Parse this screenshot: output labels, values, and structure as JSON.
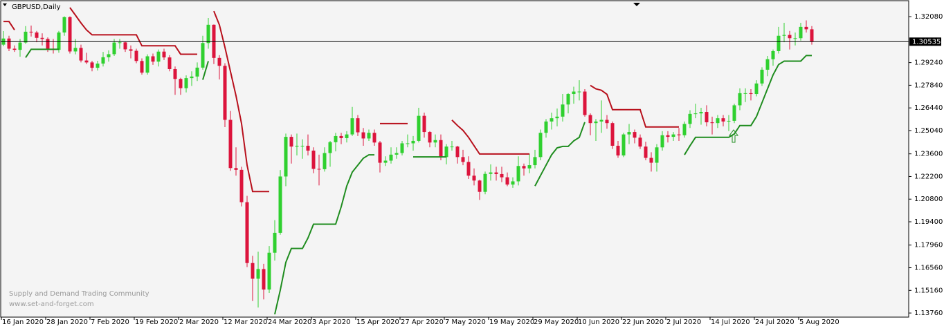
{
  "chart_data": {
    "type": "candlestick",
    "title": "GBPUSD,Daily",
    "categories": [
      "16 Jan 2020",
      null,
      null,
      null,
      null,
      null,
      null,
      null,
      "28 Jan 2020",
      null,
      null,
      null,
      null,
      null,
      null,
      null,
      "7 Feb 2020",
      null,
      null,
      null,
      null,
      null,
      null,
      null,
      "19 Feb 2020",
      null,
      null,
      null,
      null,
      null,
      null,
      null,
      "2 Mar 2020",
      null,
      null,
      null,
      null,
      null,
      null,
      null,
      "12 Mar 2020",
      null,
      null,
      null,
      null,
      null,
      null,
      null,
      "24 Mar 2020",
      null,
      null,
      null,
      null,
      null,
      null,
      null,
      "3 Apr 2020",
      null,
      null,
      null,
      null,
      null,
      null,
      null,
      "15 Apr 2020",
      null,
      null,
      null,
      null,
      null,
      null,
      null,
      "27 Apr 2020",
      null,
      null,
      null,
      null,
      null,
      null,
      null,
      "7 May 2020",
      null,
      null,
      null,
      null,
      null,
      null,
      null,
      "19 May 2020",
      null,
      null,
      null,
      null,
      null,
      null,
      null,
      "29 May 2020",
      null,
      null,
      null,
      null,
      null,
      null,
      null,
      "10 Jun 2020",
      null,
      null,
      null,
      null,
      null,
      null,
      null,
      "22 Jun 2020",
      null,
      null,
      null,
      null,
      null,
      null,
      null,
      "2 Jul 2020",
      null,
      null,
      null,
      null,
      null,
      null,
      null,
      "14 Jul 2020",
      null,
      null,
      null,
      null,
      null,
      null,
      null,
      "24 Jul 2020",
      null,
      null,
      null,
      null,
      null,
      null,
      null,
      "5 Aug 2020",
      null,
      null
    ],
    "values": [
      [
        1.3035,
        1.3119,
        1.3025,
        1.3073
      ],
      [
        1.3073,
        1.309,
        1.2995,
        1.301
      ],
      [
        1.301,
        1.303,
        1.299,
        1.3003
      ],
      [
        1.3003,
        1.307,
        1.296,
        1.3048
      ],
      [
        1.3048,
        1.315,
        1.304,
        1.3115
      ],
      [
        1.3115,
        1.3153,
        1.3085,
        1.311
      ],
      [
        1.311,
        1.312,
        1.305,
        1.3077
      ],
      [
        1.3077,
        1.3105,
        1.303,
        1.307
      ],
      [
        1.307,
        1.308,
        1.299,
        1.301
      ],
      [
        1.301,
        1.307,
        1.298,
        1.3003
      ],
      [
        1.3003,
        1.312,
        1.2985,
        1.311
      ],
      [
        1.311,
        1.321,
        1.309,
        1.3205
      ],
      [
        1.3205,
        1.321,
        1.298,
        1.2993
      ],
      [
        1.2993,
        1.307,
        1.2975,
        1.3015
      ],
      [
        1.3015,
        1.3035,
        1.2925,
        1.2937
      ],
      [
        1.2937,
        1.2985,
        1.2915,
        1.2925
      ],
      [
        1.2925,
        1.2935,
        1.287,
        1.2892
      ],
      [
        1.2892,
        1.2935,
        1.2875,
        1.2918
      ],
      [
        1.2918,
        1.299,
        1.29,
        1.2957
      ],
      [
        1.2957,
        1.3,
        1.293,
        1.2976
      ],
      [
        1.2976,
        1.307,
        1.2965,
        1.3048
      ],
      [
        1.3048,
        1.307,
        1.301,
        1.3049
      ],
      [
        1.3049,
        1.3055,
        1.299,
        1.3006
      ],
      [
        1.3006,
        1.303,
        1.295,
        1.2997
      ],
      [
        1.2997,
        1.301,
        1.292,
        1.2934
      ],
      [
        1.2934,
        1.295,
        1.285,
        1.2862
      ],
      [
        1.2862,
        1.2975,
        1.285,
        1.2963
      ],
      [
        1.2963,
        1.298,
        1.291,
        1.293
      ],
      [
        1.293,
        1.3005,
        1.29,
        1.2992
      ],
      [
        1.2992,
        1.301,
        1.294,
        1.2956
      ],
      [
        1.2956,
        1.297,
        1.287,
        1.2884
      ],
      [
        1.2884,
        1.29,
        1.2725,
        1.2823
      ],
      [
        1.2823,
        1.283,
        1.2725,
        1.2766
      ],
      [
        1.2766,
        1.2845,
        1.274,
        1.2828
      ],
      [
        1.2828,
        1.287,
        1.278,
        1.2838
      ],
      [
        1.2838,
        1.2925,
        1.281,
        1.2893
      ],
      [
        1.2893,
        1.309,
        1.288,
        1.3045
      ],
      [
        1.3045,
        1.32,
        1.301,
        1.3158
      ],
      [
        1.3158,
        1.316,
        1.2915,
        1.2953
      ],
      [
        1.2953,
        1.297,
        1.282,
        1.2904
      ],
      [
        1.2904,
        1.292,
        1.2525,
        1.257
      ],
      [
        1.257,
        1.2625,
        1.2255,
        1.2272
      ],
      [
        1.2272,
        1.24,
        1.2225,
        1.2261
      ],
      [
        1.2261,
        1.228,
        1.2035,
        1.2061
      ],
      [
        1.2061,
        1.21,
        1.166,
        1.1685
      ],
      [
        1.1685,
        1.173,
        1.145,
        1.1588
      ],
      [
        1.1588,
        1.1755,
        1.141,
        1.1648
      ],
      [
        1.1648,
        1.168,
        1.146,
        1.1521
      ],
      [
        1.1521,
        1.179,
        1.15,
        1.1749
      ],
      [
        1.1749,
        1.195,
        1.17,
        1.1872
      ],
      [
        1.1872,
        1.226,
        1.186,
        1.222
      ],
      [
        1.222,
        1.2485,
        1.216,
        1.2465
      ],
      [
        1.2465,
        1.248,
        1.23,
        1.2405
      ],
      [
        1.2405,
        1.2485,
        1.235,
        1.241
      ],
      [
        1.241,
        1.245,
        1.233,
        1.241
      ],
      [
        1.241,
        1.248,
        1.235,
        1.238
      ],
      [
        1.238,
        1.24,
        1.224,
        1.2267
      ],
      [
        1.2267,
        1.2355,
        1.2165,
        1.2265
      ],
      [
        1.2265,
        1.24,
        1.225,
        1.2365
      ],
      [
        1.2365,
        1.244,
        1.228,
        1.2432
      ],
      [
        1.2432,
        1.249,
        1.2375,
        1.247
      ],
      [
        1.247,
        1.249,
        1.242,
        1.2457
      ],
      [
        1.2457,
        1.25,
        1.243,
        1.248
      ],
      [
        1.248,
        1.265,
        1.247,
        1.258
      ],
      [
        1.258,
        1.26,
        1.247,
        1.2493
      ],
      [
        1.2493,
        1.252,
        1.241,
        1.2455
      ],
      [
        1.2455,
        1.251,
        1.244,
        1.249
      ],
      [
        1.249,
        1.251,
        1.241,
        1.243
      ],
      [
        1.243,
        1.244,
        1.2245,
        1.2305
      ],
      [
        1.2305,
        1.2345,
        1.2285,
        1.2318
      ],
      [
        1.2318,
        1.24,
        1.23,
        1.2355
      ],
      [
        1.2355,
        1.24,
        1.233,
        1.2365
      ],
      [
        1.2365,
        1.244,
        1.235,
        1.2425
      ],
      [
        1.2425,
        1.248,
        1.24,
        1.2425
      ],
      [
        1.2425,
        1.247,
        1.238,
        1.244
      ],
      [
        1.244,
        1.2645,
        1.243,
        1.2595
      ],
      [
        1.2595,
        1.2615,
        1.246,
        1.2495
      ],
      [
        1.2495,
        1.25,
        1.24,
        1.243
      ],
      [
        1.243,
        1.248,
        1.24,
        1.2445
      ],
      [
        1.2445,
        1.248,
        1.232,
        1.234
      ],
      [
        1.234,
        1.242,
        1.2295,
        1.2405
      ],
      [
        1.2405,
        1.244,
        1.238,
        1.2405
      ],
      [
        1.2405,
        1.241,
        1.23,
        1.234
      ],
      [
        1.234,
        1.2385,
        1.229,
        1.231
      ],
      [
        1.231,
        1.2345,
        1.2205,
        1.2225
      ],
      [
        1.2225,
        1.227,
        1.2165,
        1.2195
      ],
      [
        1.2195,
        1.22,
        1.2075,
        1.2125
      ],
      [
        1.2125,
        1.225,
        1.211,
        1.2236
      ],
      [
        1.2236,
        1.2295,
        1.2195,
        1.2245
      ],
      [
        1.2245,
        1.228,
        1.2195,
        1.2235
      ],
      [
        1.2235,
        1.228,
        1.2185,
        1.2215
      ],
      [
        1.2215,
        1.2245,
        1.216,
        1.217
      ],
      [
        1.217,
        1.2215,
        1.215,
        1.219
      ],
      [
        1.219,
        1.2345,
        1.2165,
        1.2285
      ],
      [
        1.2285,
        1.23,
        1.2225,
        1.227
      ],
      [
        1.227,
        1.236,
        1.224,
        1.229
      ],
      [
        1.229,
        1.2385,
        1.227,
        1.234
      ],
      [
        1.234,
        1.251,
        1.232,
        1.249
      ],
      [
        1.249,
        1.2575,
        1.246,
        1.256
      ],
      [
        1.256,
        1.2615,
        1.251,
        1.258
      ],
      [
        1.258,
        1.264,
        1.253,
        1.259
      ],
      [
        1.259,
        1.273,
        1.256,
        1.2665
      ],
      [
        1.2665,
        1.2735,
        1.261,
        1.273
      ],
      [
        1.273,
        1.2775,
        1.267,
        1.2745
      ],
      [
        1.2745,
        1.2815,
        1.269,
        1.2745
      ],
      [
        1.2745,
        1.276,
        1.259,
        1.26
      ],
      [
        1.26,
        1.261,
        1.2475,
        1.255
      ],
      [
        1.255,
        1.2575,
        1.244,
        1.256
      ],
      [
        1.256,
        1.269,
        1.249,
        1.257
      ],
      [
        1.257,
        1.26,
        1.2515,
        1.255
      ],
      [
        1.255,
        1.256,
        1.239,
        1.241
      ],
      [
        1.241,
        1.244,
        1.2335,
        1.235
      ],
      [
        1.235,
        1.249,
        1.234,
        1.248
      ],
      [
        1.248,
        1.2545,
        1.242,
        1.2495
      ],
      [
        1.2495,
        1.251,
        1.2425,
        1.246
      ],
      [
        1.246,
        1.248,
        1.239,
        1.2405
      ],
      [
        1.2405,
        1.2435,
        1.232,
        1.2335
      ],
      [
        1.2335,
        1.237,
        1.225,
        1.2305
      ],
      [
        1.2305,
        1.242,
        1.225,
        1.24
      ],
      [
        1.24,
        1.25,
        1.238,
        1.2475
      ],
      [
        1.2475,
        1.25,
        1.243,
        1.2465
      ],
      [
        1.2465,
        1.2495,
        1.244,
        1.248
      ],
      [
        1.248,
        1.252,
        1.244,
        1.2475
      ],
      [
        1.2475,
        1.256,
        1.246,
        1.2545
      ],
      [
        1.2545,
        1.263,
        1.252,
        1.2607
      ],
      [
        1.2607,
        1.267,
        1.258,
        1.261
      ],
      [
        1.261,
        1.2645,
        1.254,
        1.2619
      ],
      [
        1.2619,
        1.266,
        1.253,
        1.2555
      ],
      [
        1.2555,
        1.259,
        1.248,
        1.255
      ],
      [
        1.255,
        1.26,
        1.252,
        1.258
      ],
      [
        1.258,
        1.26,
        1.253,
        1.256
      ],
      [
        1.256,
        1.26,
        1.25,
        1.2564
      ],
      [
        1.2564,
        1.267,
        1.255,
        1.266
      ],
      [
        1.266,
        1.2765,
        1.263,
        1.2735
      ],
      [
        1.2735,
        1.2765,
        1.268,
        1.2735
      ],
      [
        1.2735,
        1.276,
        1.269,
        1.273
      ],
      [
        1.273,
        1.2815,
        1.2715,
        1.2795
      ],
      [
        1.2795,
        1.2895,
        1.278,
        1.288
      ],
      [
        1.288,
        1.2965,
        1.284,
        1.2945
      ],
      [
        1.2945,
        1.3005,
        1.2905,
        1.2995
      ],
      [
        1.2995,
        1.3145,
        1.298,
        1.309
      ],
      [
        1.309,
        1.317,
        1.305,
        1.3095
      ],
      [
        1.3095,
        1.312,
        1.3005,
        1.3075
      ],
      [
        1.3075,
        1.311,
        1.303,
        1.3075
      ],
      [
        1.3075,
        1.317,
        1.306,
        1.3145
      ],
      [
        1.3145,
        1.3185,
        1.311,
        1.313
      ],
      [
        1.313,
        1.315,
        1.3035,
        1.3055
      ]
    ],
    "up_color": "#2fd02f",
    "down_color": "#dc143c",
    "lines": [
      {
        "color": "#b8101c",
        "values": [
          1.3178,
          1.3178,
          1.3126,
          null,
          null,
          null,
          null,
          null,
          null,
          null,
          null,
          null,
          1.3264,
          1.3217,
          1.3169,
          1.3126,
          1.3096,
          1.3096,
          1.3096,
          1.3096,
          1.3096,
          1.3096,
          1.3096,
          1.3096,
          1.3096,
          1.3028,
          1.3028,
          1.3028,
          1.3028,
          1.3028,
          1.3028,
          1.3028,
          1.2976,
          1.2976,
          1.2976,
          1.2976,
          null,
          null,
          1.3242,
          1.3157,
          1.3019,
          1.2869,
          1.2719,
          1.2547,
          1.229,
          1.2127,
          1.2127,
          1.2127,
          1.2127,
          null,
          null,
          null,
          null,
          null,
          null,
          null,
          null,
          null,
          null,
          null,
          null,
          null,
          null,
          null,
          null,
          null,
          null,
          null,
          1.2547,
          1.2547,
          1.2547,
          1.2547,
          1.2547,
          1.2547,
          null,
          null,
          null,
          null,
          null,
          null,
          null,
          1.2569,
          1.2535,
          1.2505,
          1.2462,
          1.241,
          1.2359,
          1.2359,
          1.2359,
          1.2359,
          1.2359,
          1.2359,
          1.2359,
          1.2359,
          1.2359,
          1.2359,
          null,
          null,
          null,
          null,
          null,
          null,
          null,
          null,
          null,
          null,
          1.2783,
          1.2762,
          1.2753,
          1.2728,
          1.2633,
          1.2633,
          1.2633,
          1.2633,
          1.2633,
          1.2633,
          1.2526,
          1.2526,
          1.2526,
          1.2526,
          1.2526,
          1.2526,
          1.2526,
          null,
          null,
          null,
          null,
          null,
          null,
          null,
          null,
          null,
          null,
          null,
          null,
          null,
          null,
          null,
          null,
          null,
          null,
          null,
          null,
          null,
          null,
          null,
          null
        ]
      },
      {
        "color": "#1e8c1e",
        "values": [
          null,
          null,
          null,
          null,
          1.2955,
          1.3006,
          1.3006,
          1.3006,
          1.3006,
          1.3006,
          1.3006,
          null,
          null,
          null,
          null,
          null,
          null,
          null,
          null,
          null,
          null,
          null,
          null,
          null,
          null,
          null,
          null,
          null,
          null,
          null,
          null,
          null,
          null,
          null,
          null,
          null,
          1.2818,
          1.2933,
          null,
          null,
          null,
          null,
          null,
          null,
          null,
          null,
          null,
          null,
          null,
          1.1368,
          1.1518,
          1.1689,
          1.1775,
          1.1775,
          1.1775,
          1.184,
          1.1925,
          1.1925,
          1.1925,
          1.1925,
          1.1925,
          1.2033,
          1.2161,
          1.2247,
          1.229,
          1.2333,
          1.2354,
          1.2354,
          null,
          null,
          null,
          null,
          null,
          null,
          1.2341,
          1.2341,
          1.2341,
          1.2341,
          1.2341,
          1.2341,
          1.2341,
          null,
          null,
          null,
          null,
          null,
          null,
          null,
          null,
          null,
          null,
          null,
          null,
          null,
          null,
          null,
          1.2161,
          1.2226,
          1.229,
          1.2354,
          1.2397,
          1.2406,
          1.2406,
          1.244,
          1.2462,
          1.2556,
          null,
          null,
          null,
          null,
          null,
          null,
          null,
          null,
          null,
          null,
          null,
          null,
          null,
          null,
          null,
          null,
          null,
          1.2354,
          1.241,
          1.2462,
          1.2462,
          1.2462,
          1.2462,
          1.2462,
          1.2462,
          1.2462,
          1.2483,
          1.2535,
          1.2535,
          1.2535,
          1.259,
          1.2676,
          1.2762,
          1.2848,
          1.2912,
          1.2933,
          1.2933,
          1.2933,
          1.2933,
          1.2968,
          1.2968
        ]
      }
    ],
    "ylim": [
      1.1355,
      1.3311
    ],
    "yticks": [
      {
        "value": 1.3208,
        "label": "1.32080"
      },
      {
        "value": 1.2924,
        "label": "1.29240"
      },
      {
        "value": 1.2784,
        "label": "1.27840"
      },
      {
        "value": 1.2644,
        "label": "1.26440"
      },
      {
        "value": 1.2504,
        "label": "1.25040"
      },
      {
        "value": 1.236,
        "label": "1.23600"
      },
      {
        "value": 1.222,
        "label": "1.22200"
      },
      {
        "value": 1.208,
        "label": "1.20800"
      },
      {
        "value": 1.194,
        "label": "1.19400"
      },
      {
        "value": 1.1796,
        "label": "1.17960"
      },
      {
        "value": 1.1656,
        "label": "1.16560"
      },
      {
        "value": 1.1516,
        "label": "1.15160"
      },
      {
        "value": 1.1376,
        "label": "1.13760"
      }
    ],
    "current_price": 1.30535
  },
  "watermark": [
    "Supply and Demand Trading Community",
    "www.set-and-forget.com"
  ]
}
